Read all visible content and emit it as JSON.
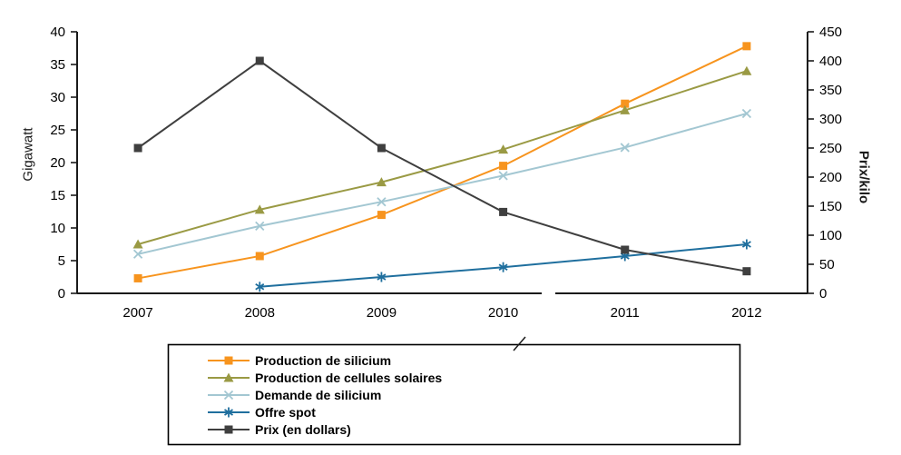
{
  "chart_data": {
    "type": "line",
    "categories": [
      "2007",
      "2008",
      "2009",
      "2010",
      "2011",
      "2012"
    ],
    "series": [
      {
        "name": "Production de silicium",
        "axis": "left",
        "color": "#F7941E",
        "marker": "square",
        "values": [
          2.3,
          5.7,
          12,
          19.5,
          29,
          37.8
        ]
      },
      {
        "name": "Production de cellules solaires",
        "axis": "left",
        "color": "#9A9A44",
        "marker": "triangle",
        "values": [
          7.5,
          12.8,
          17,
          22,
          28,
          34
        ]
      },
      {
        "name": "Demande de silicium",
        "axis": "left",
        "color": "#A3C7D2",
        "marker": "x",
        "values": [
          6,
          10.3,
          14,
          18,
          22.3,
          27.5
        ]
      },
      {
        "name": "Offre spot",
        "axis": "left",
        "color": "#1F6F9E",
        "marker": "asterisk",
        "values": [
          null,
          1,
          2.5,
          4,
          5.7,
          7.5
        ]
      },
      {
        "name": "Prix (en dollars)",
        "axis": "right",
        "color": "#3F3F3F",
        "marker": "square",
        "values": [
          250,
          400,
          250,
          140,
          75,
          38
        ]
      }
    ],
    "left_axis": {
      "label": "Gigawatt",
      "min": 0,
      "max": 40,
      "ticks": [
        0,
        5,
        10,
        15,
        20,
        25,
        30,
        35,
        40
      ]
    },
    "right_axis": {
      "label": "Prix/kilo",
      "min": 0,
      "max": 450,
      "ticks": [
        0,
        50,
        100,
        150,
        200,
        250,
        300,
        350,
        400,
        450
      ]
    },
    "grid": false,
    "legend_position": "bottom",
    "axis_color": "#1a1a1a"
  }
}
